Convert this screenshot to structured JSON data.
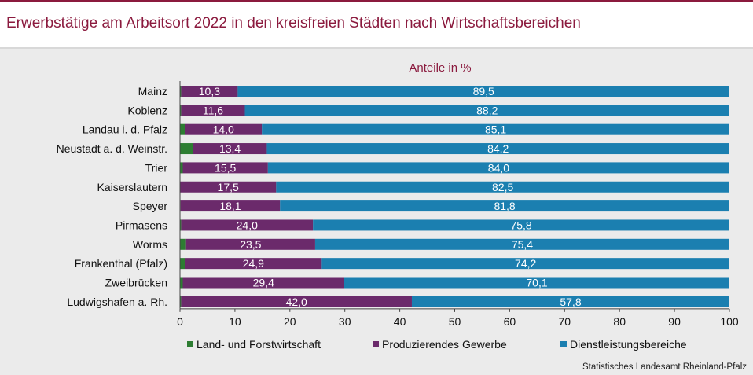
{
  "title": "Erwerbstätige am Arbeitsort 2022 in den kreisfreien Städten nach Wirtschaftsbereichen",
  "source": "Statistisches Landesamt Rheinland-Pfalz",
  "colors": {
    "brand": "#8b1a3e",
    "agriculture": "#2d7d32",
    "industry": "#6b2a6b",
    "services": "#1b7fb0",
    "panel": "#ebebeb"
  },
  "chart_data": {
    "type": "bar",
    "orientation": "horizontal",
    "stacked": true,
    "subtitle": "Anteile in %",
    "categories": [
      "Mainz",
      "Koblenz",
      "Landau i. d. Pfalz",
      "Neustadt a. d. Weinstr.",
      "Trier",
      "Kaiserslautern",
      "Speyer",
      "Pirmasens",
      "Worms",
      "Frankenthal (Pfalz)",
      "Zweibrücken",
      "Ludwigshafen a. Rh."
    ],
    "series": [
      {
        "name": "Land- und Forstwirtschaft",
        "color": "#2d7d32",
        "values": [
          0.2,
          0.2,
          0.9,
          2.4,
          0.5,
          0.0,
          0.1,
          0.2,
          1.1,
          0.9,
          0.5,
          0.2
        ],
        "labels": [
          "",
          "",
          "",
          "",
          "",
          "",
          "",
          "",
          "",
          "",
          "",
          ""
        ]
      },
      {
        "name": "Produzierendes Gewerbe",
        "color": "#6b2a6b",
        "values": [
          10.3,
          11.6,
          14.0,
          13.4,
          15.5,
          17.5,
          18.1,
          24.0,
          23.5,
          24.9,
          29.4,
          42.0
        ],
        "labels": [
          "10,3",
          "11,6",
          "14,0",
          "13,4",
          "15,5",
          "17,5",
          "18,1",
          "24,0",
          "23,5",
          "24,9",
          "29,4",
          "42,0"
        ]
      },
      {
        "name": "Dienstleistungsbereiche",
        "color": "#1b7fb0",
        "values": [
          89.5,
          88.2,
          85.1,
          84.2,
          84.0,
          82.5,
          81.8,
          75.8,
          75.4,
          74.2,
          70.1,
          57.8
        ],
        "labels": [
          "89,5",
          "88,2",
          "85,1",
          "84,2",
          "84,0",
          "82,5",
          "81,8",
          "75,8",
          "75,4",
          "74,2",
          "70,1",
          "57,8"
        ]
      }
    ],
    "xlim": [
      0,
      100
    ],
    "xticks": [
      "0",
      "10",
      "20",
      "30",
      "40",
      "50",
      "60",
      "70",
      "80",
      "90",
      "100"
    ],
    "xlabel": "",
    "ylabel": "",
    "grid": false,
    "legend_position": "bottom"
  }
}
